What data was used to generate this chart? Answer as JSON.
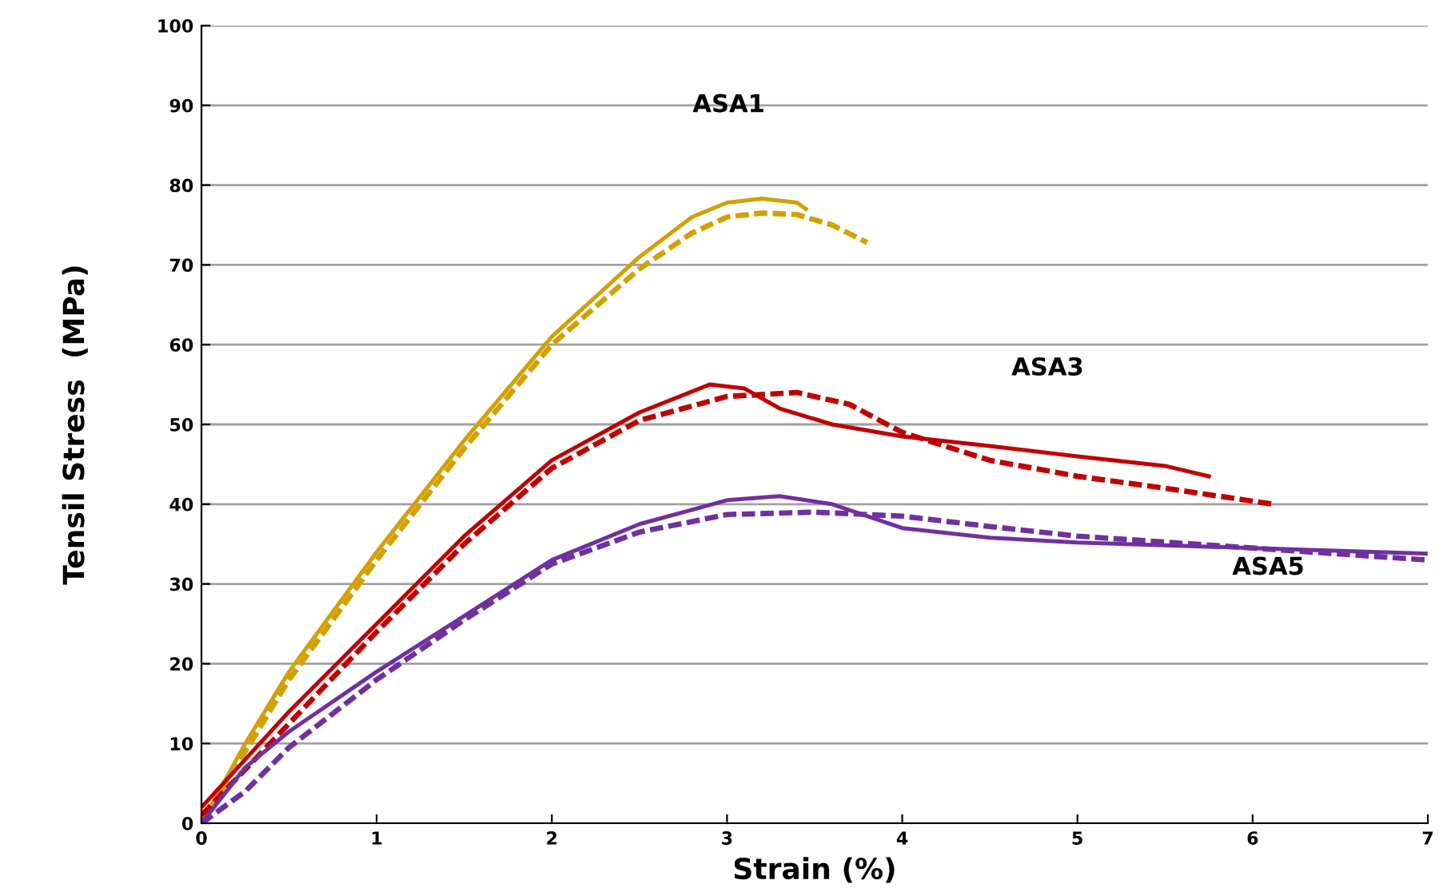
{
  "chart_data": {
    "type": "line",
    "xlabel": "Strain (%)",
    "ylabel": "Tensil Stress  (MPa)",
    "xlim": [
      0,
      7
    ],
    "xticks": [
      0,
      1,
      2,
      3,
      4,
      5,
      6,
      7
    ],
    "ylim": [
      0,
      100
    ],
    "yticks": [
      0,
      10,
      20,
      30,
      40,
      50,
      60,
      70,
      80,
      90,
      100
    ],
    "grid": "y",
    "marker": "none",
    "annotations": [
      "ASA1",
      "ASA3",
      "ASA5"
    ],
    "series": [
      {
        "color": "#d4a000",
        "line_style": "solid",
        "x": [
          0,
          0.25,
          0.5,
          1,
          1.5,
          2,
          2.5,
          2.8,
          3.0,
          3.2,
          3.4,
          3.45
        ],
        "values": [
          0,
          10,
          19,
          34,
          48,
          61,
          71,
          76,
          77.8,
          78.3,
          77.8,
          77
        ]
      },
      {
        "color": "#d4a000",
        "line_style": "dashed",
        "x": [
          0,
          0.5,
          1,
          1.5,
          2,
          2.5,
          2.8,
          3.0,
          3.2,
          3.4,
          3.6,
          3.8
        ],
        "values": [
          0,
          18,
          33,
          47,
          60,
          69.5,
          74,
          76,
          76.5,
          76.3,
          75,
          72.8
        ]
      },
      {
        "color": "#c00000",
        "line_style": "solid",
        "x": [
          0,
          0.25,
          0.5,
          1,
          1.5,
          2,
          2.5,
          2.9,
          3.1,
          3.3,
          3.6,
          4,
          4.5,
          5,
          5.5,
          5.75
        ],
        "values": [
          2,
          8,
          14,
          25,
          36,
          45.5,
          51.5,
          55,
          54.5,
          52,
          50,
          48.5,
          47.3,
          46,
          44.8,
          43.5
        ]
      },
      {
        "color": "#c00000",
        "line_style": "dashed",
        "x": [
          0,
          0.5,
          1,
          1.5,
          2,
          2.5,
          3,
          3.4,
          3.7,
          4,
          4.5,
          5,
          5.5,
          6.12
        ],
        "values": [
          1,
          12.5,
          24,
          35,
          44.5,
          50.5,
          53.5,
          54,
          52.5,
          49,
          45.5,
          43.5,
          42,
          40
        ]
      },
      {
        "color": "#7030a0",
        "line_style": "solid",
        "x": [
          0,
          0.25,
          0.5,
          1,
          1.5,
          2,
          2.5,
          3,
          3.3,
          3.6,
          4,
          4.5,
          5,
          6,
          7
        ],
        "values": [
          0,
          7,
          11.5,
          19,
          26,
          33,
          37.5,
          40.5,
          41,
          40,
          37,
          35.8,
          35.2,
          34.5,
          33.8
        ]
      },
      {
        "color": "#7030a0",
        "line_style": "dashed",
        "x": [
          0,
          0.25,
          0.5,
          1,
          1.5,
          2,
          2.5,
          3,
          3.5,
          4,
          4.5,
          5,
          6,
          7
        ],
        "values": [
          0,
          4,
          9.5,
          18,
          25.5,
          32.5,
          36.5,
          38.7,
          39,
          38.5,
          37.2,
          36,
          34.5,
          33
        ]
      }
    ]
  }
}
